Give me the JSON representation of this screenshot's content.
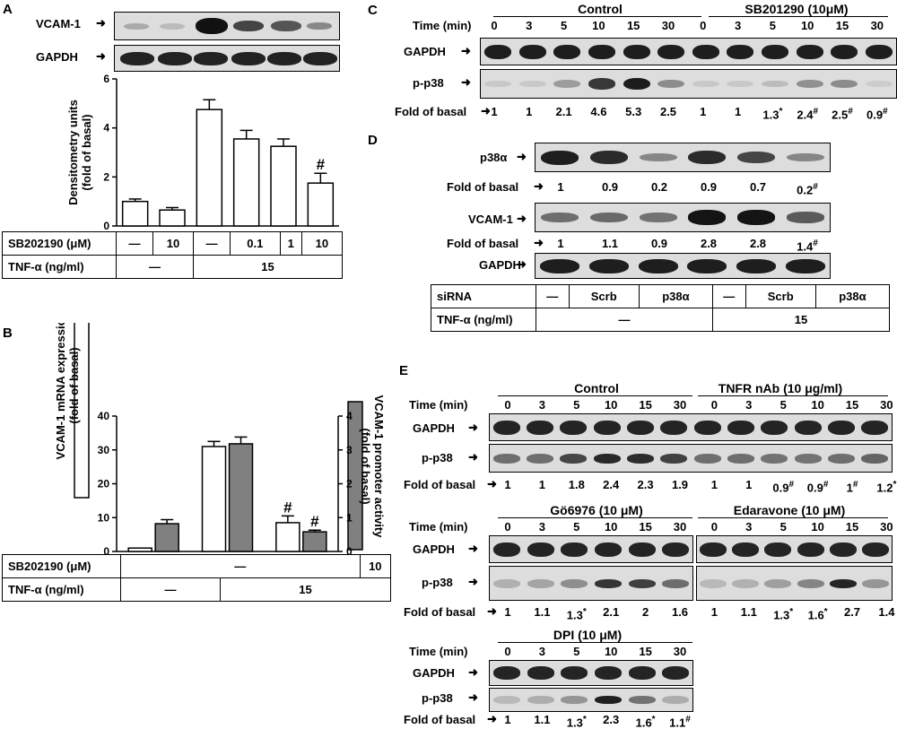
{
  "panels": {
    "A": {
      "letter": "A",
      "blot_labels": [
        "VCAM-1",
        "GAPDH"
      ],
      "chart_ylabel_line1": "Densitometry units",
      "chart_ylabel_line2": "(fold of basal)",
      "cond_rows": [
        {
          "label": "SB202190 (μM)",
          "cells": [
            "—",
            "10",
            "—",
            "0.1",
            "1",
            "10"
          ]
        },
        {
          "label": "TNF-α (ng/ml)",
          "cells": [
            "—",
            "15"
          ]
        }
      ]
    },
    "B": {
      "letter": "B",
      "ylabel_left_line1": "VCAM-1 mRNA expression",
      "ylabel_left_line2": "(fold of basal)",
      "ylabel_right_line1": "VCAM-1 promoter activity",
      "ylabel_right_line2": "(fold of basal)",
      "cond_rows": [
        {
          "label": "SB202190 (μM)",
          "cells": [
            "—",
            "10"
          ]
        },
        {
          "label": "TNF-α (ng/ml)",
          "cells": [
            "—",
            "15"
          ]
        }
      ]
    },
    "C": {
      "letter": "C",
      "group_left": "Control",
      "group_right": "SB201290 (10μM)",
      "time_label": "Time (min)",
      "times": [
        "0",
        "3",
        "5",
        "10",
        "15",
        "30",
        "0",
        "3",
        "5",
        "10",
        "15",
        "30"
      ],
      "blot_labels": [
        "GAPDH",
        "p-p38"
      ],
      "fold_label": "Fold of basal",
      "folds": [
        "1",
        "1",
        "2.1",
        "4.6",
        "5.3",
        "2.5",
        "1",
        "1",
        "1.3",
        "2.4",
        "2.5",
        "0.9"
      ],
      "fold_marks": [
        "",
        "",
        "",
        "",
        "",
        "",
        "",
        "",
        "*",
        "#",
        "#",
        "#"
      ]
    },
    "D": {
      "letter": "D",
      "blot_labels": [
        "p38α",
        "VCAM-1",
        "GAPDH"
      ],
      "fold_label": "Fold of basal",
      "folds_p38": [
        "1",
        "0.9",
        "0.2",
        "0.9",
        "0.7",
        "0.2"
      ],
      "marks_p38": [
        "",
        "",
        "",
        "",
        "",
        "#"
      ],
      "folds_vcam": [
        "1",
        "1.1",
        "0.9",
        "2.8",
        "2.8",
        "1.4"
      ],
      "marks_vcam": [
        "",
        "",
        "",
        "",
        "",
        "#"
      ],
      "cond_rows": [
        {
          "label": "siRNA",
          "cells": [
            "—",
            "Scrb",
            "p38α",
            "—",
            "Scrb",
            "p38α"
          ]
        },
        {
          "label": "TNF-α (ng/ml)",
          "cells": [
            "—",
            "15"
          ]
        }
      ]
    },
    "E": {
      "letter": "E",
      "time_label": "Time (min)",
      "fold_label": "Fold of basal",
      "blot_labels": [
        "GAPDH",
        "p-p38"
      ],
      "row1": {
        "group_left": "Control",
        "group_right": "TNFR nAb (10 μg/ml)",
        "times": [
          "0",
          "3",
          "5",
          "10",
          "15",
          "30",
          "0",
          "3",
          "5",
          "10",
          "15",
          "30"
        ],
        "folds": [
          "1",
          "1",
          "1.8",
          "2.4",
          "2.3",
          "1.9",
          "1",
          "1",
          "0.9",
          "0.9",
          "1",
          "1.2"
        ],
        "marks": [
          "",
          "",
          "",
          "",
          "",
          "",
          "",
          "",
          "#",
          "#",
          "#",
          "*"
        ]
      },
      "row2": {
        "group_left": "Gö6976 (10 μM)",
        "group_right": "Edaravone (10 μM)",
        "times": [
          "0",
          "3",
          "5",
          "10",
          "15",
          "30",
          "0",
          "3",
          "5",
          "10",
          "15",
          "30"
        ],
        "folds": [
          "1",
          "1.1",
          "1.3",
          "2.1",
          "2",
          "1.6",
          "1",
          "1.1",
          "1.3",
          "1.6",
          "2.7",
          "1.4"
        ],
        "marks": [
          "",
          "",
          "*",
          "",
          "",
          "",
          "",
          "",
          "*",
          "*",
          "",
          ""
        ]
      },
      "row3": {
        "group_left": "DPI (10 μM)",
        "times": [
          "0",
          "3",
          "5",
          "10",
          "15",
          "30"
        ],
        "folds": [
          "1",
          "1.1",
          "1.3",
          "2.3",
          "1.6",
          "1.1"
        ],
        "marks": [
          "",
          "",
          "*",
          "",
          "*",
          "#"
        ]
      }
    }
  },
  "chart_data": [
    {
      "type": "bar",
      "panel": "A",
      "categories": [
        "1",
        "2",
        "3",
        "4",
        "5",
        "6"
      ],
      "values": [
        1.0,
        0.65,
        4.75,
        3.55,
        3.25,
        1.75
      ],
      "errors": [
        0.1,
        0.1,
        0.4,
        0.35,
        0.3,
        0.4
      ],
      "significance": [
        "",
        "",
        "",
        "",
        "",
        "#"
      ],
      "ylim": [
        0,
        6
      ],
      "yticks": [
        0,
        2,
        4,
        6
      ],
      "ylabel": "Densitometry units (fold of basal)",
      "bar_color": "#ffffff"
    },
    {
      "type": "bar",
      "panel": "B",
      "groups": 3,
      "series": [
        {
          "name": "VCAM-1 mRNA expression (fold of basal)",
          "axis": "left",
          "color": "#ffffff",
          "values": [
            1,
            31,
            8.5
          ],
          "errors": [
            0,
            1.5,
            2
          ],
          "significance": [
            "",
            "",
            "#"
          ]
        },
        {
          "name": "VCAM-1 promoter activity (fold of basal)",
          "axis": "right",
          "color": "#808080",
          "values": [
            0.82,
            3.18,
            0.58
          ],
          "errors": [
            0.12,
            0.2,
            0.05
          ],
          "significance": [
            "",
            "",
            "#"
          ]
        }
      ],
      "ylim_left": [
        0,
        40
      ],
      "yticks_left": [
        0,
        10,
        20,
        30,
        40
      ],
      "ylim_right": [
        0,
        4
      ],
      "yticks_right": [
        0,
        1,
        2,
        3,
        4
      ]
    }
  ]
}
